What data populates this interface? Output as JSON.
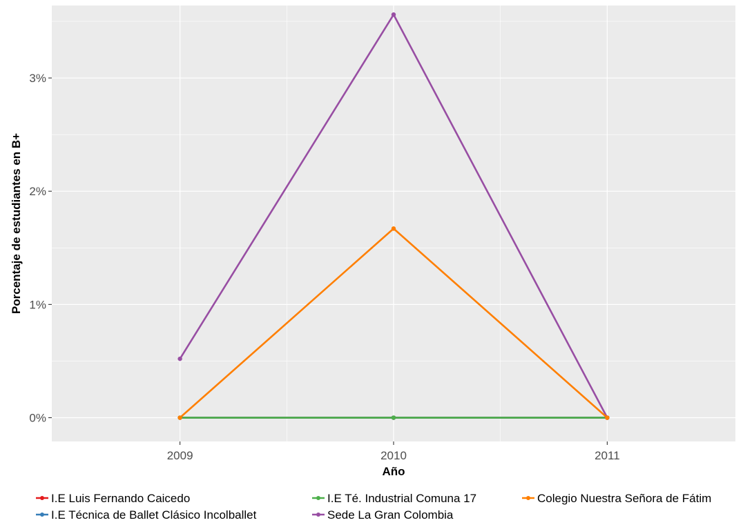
{
  "chart_data": {
    "type": "line",
    "title": "",
    "xlabel": "Año",
    "ylabel": "Porcentaje de estudiantes en B+",
    "x": [
      2009,
      2010,
      2011
    ],
    "x_tick_labels": [
      "2009",
      "2010",
      "2011"
    ],
    "xlim": [
      2008.4,
      2011.6
    ],
    "ylim": [
      -0.0021,
      0.0364
    ],
    "y_ticks": [
      0,
      0.01,
      0.02,
      0.03
    ],
    "y_tick_labels": [
      "0%",
      "1%",
      "2%",
      "3%"
    ],
    "grid": true,
    "legend_position": "bottom",
    "series": [
      {
        "name": "I.E Luis Fernando Caicedo",
        "color": "#e41a1c",
        "values": [
          0,
          0,
          0
        ]
      },
      {
        "name": "I.E Técnica de Ballet Clásico Incolballet",
        "color": "#377eb8",
        "values": [
          0,
          0,
          0
        ]
      },
      {
        "name": "I.E Té. Industrial Comuna 17",
        "color": "#4daf4a",
        "values": [
          0,
          0,
          0
        ]
      },
      {
        "name": "Sede La Gran Colombia",
        "color": "#984ea3",
        "values": [
          0.0052,
          0.0356,
          0
        ]
      },
      {
        "name": "Colegio Nuestra Señora de Fátim",
        "color": "#ff7f00",
        "values": [
          0,
          0.0167,
          0
        ]
      }
    ]
  }
}
